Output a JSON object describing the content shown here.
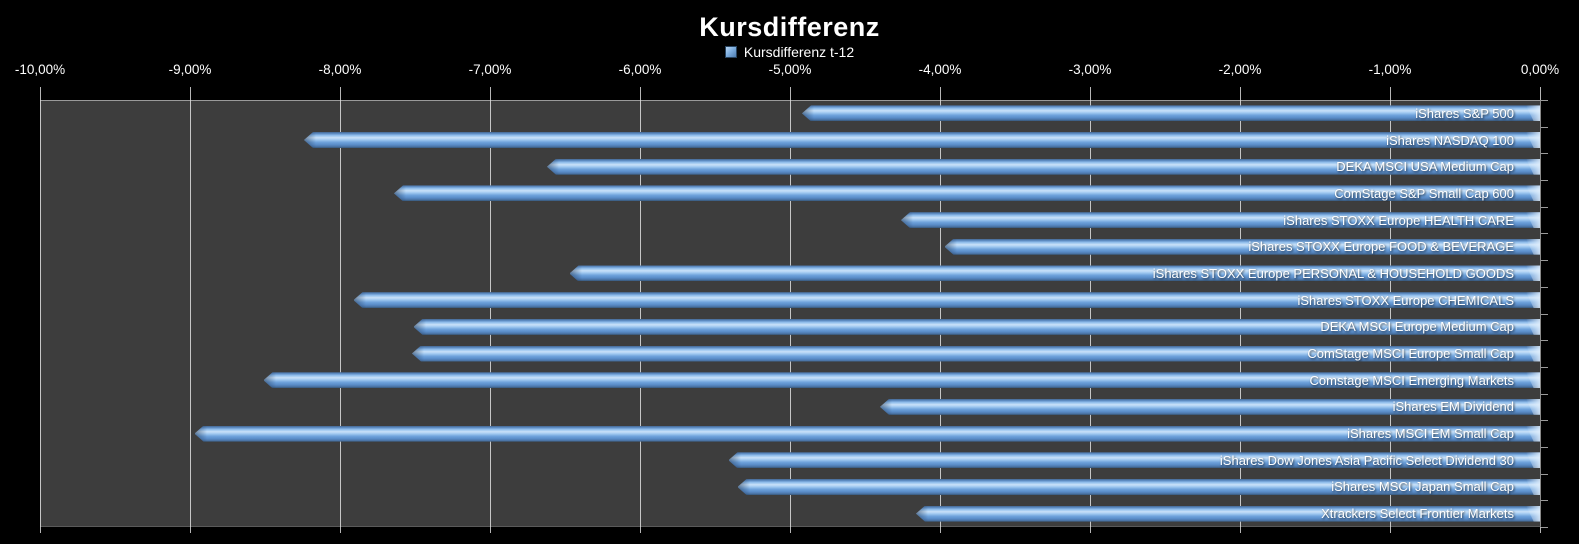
{
  "chart_data": {
    "type": "bar",
    "orientation": "horizontal",
    "title": "Kursdifferenz",
    "legend_label": "Kursdifferenz t-12",
    "legend_position": "top",
    "grid": true,
    "x_axis": {
      "min": -10,
      "max": 0,
      "tick_values": [
        -10,
        -9,
        -8,
        -7,
        -6,
        -5,
        -4,
        -3,
        -2,
        -1,
        0
      ],
      "tick_labels": [
        "-10,00%",
        "-9,00%",
        "-8,00%",
        "-7,00%",
        "-6,00%",
        "-5,00%",
        "-4,00%",
        "-3,00%",
        "-2,00%",
        "-1,00%",
        "0,00%"
      ]
    },
    "categories": [
      "iShares S&P 500",
      "iShares NASDAQ 100",
      "DEKA MSCI USA Medium Cap",
      "ComStage S&P Small Cap 600",
      "iShares STOXX Europe HEALTH CARE",
      "iShares STOXX Europe FOOD & BEVERAGE",
      "iShares STOXX Europe PERSONAL & HOUSEHOLD GOODS",
      "iShares STOXX Europe CHEMICALS",
      "DEKA MSCI Europe Medium Cap",
      "ComStage MSCI Europe Small Cap",
      "Comstage MSCI Emerging Markets",
      "iShares EM Dividend",
      "iShares MSCI EM Small Cap",
      "iShares Dow Jones Asia Pacific Select Dividend 30",
      "iShares MSCI Japan Small Cap",
      "Xtrackers Select Frontier Markets"
    ],
    "series": [
      {
        "name": "Kursdifferenz t-12",
        "values": [
          -4.92,
          -8.24,
          -6.62,
          -7.64,
          -4.26,
          -3.97,
          -6.47,
          -7.91,
          -7.51,
          -7.52,
          -8.51,
          -4.4,
          -8.97,
          -5.41,
          -5.35,
          -4.16
        ]
      }
    ],
    "colors": {
      "background": "#000000",
      "plot_background": "#3d3d3d",
      "bar": "#6ca4dd",
      "bar_highlight": "#c9e1f8",
      "bar_shadow": "#365678",
      "gridline": "#dedede",
      "text": "#ffffff"
    }
  }
}
